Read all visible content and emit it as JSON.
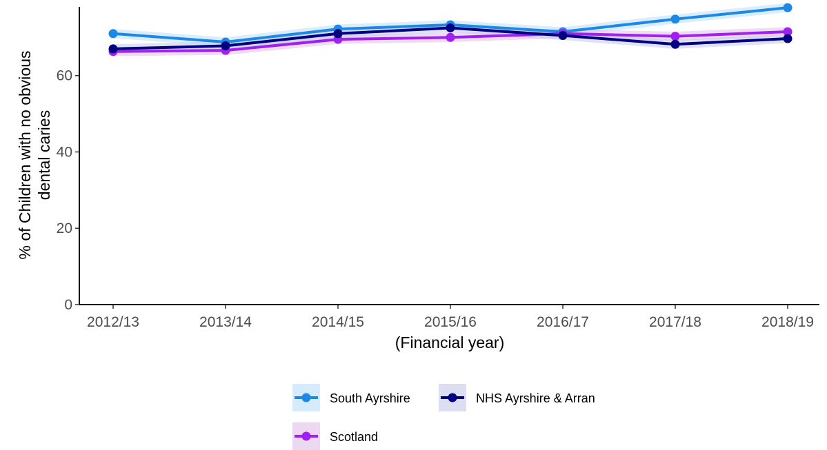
{
  "chart_data": {
    "type": "line",
    "title": "",
    "xlabel": "(Financial year)",
    "ylabel_lines": [
      "% of Children with no obvious",
      "dental caries"
    ],
    "categories": [
      "2012/13",
      "2013/14",
      "2014/15",
      "2015/16",
      "2016/17",
      "2017/18",
      "2018/19"
    ],
    "ylim": [
      0,
      78
    ],
    "yticks": [
      0,
      20,
      40,
      60
    ],
    "grid": false,
    "legend_position": "bottom",
    "series": [
      {
        "name": "South Ayrshire",
        "color": "#1E88E5",
        "band_color": "#BBDEFB",
        "values": [
          71.0,
          68.8,
          72.2,
          73.3,
          71.5,
          74.8,
          77.8
        ]
      },
      {
        "name": "NHS Ayrshire & Arran",
        "color": "#000080",
        "band_color": "#C5CAE9",
        "values": [
          67.0,
          67.8,
          71.0,
          72.5,
          70.5,
          68.2,
          69.7
        ]
      },
      {
        "name": "Scotland",
        "color": "#A020F0",
        "band_color": "#E1BEE7",
        "values": [
          66.3,
          66.6,
          69.5,
          70.0,
          71.0,
          70.3,
          71.5
        ]
      }
    ]
  }
}
